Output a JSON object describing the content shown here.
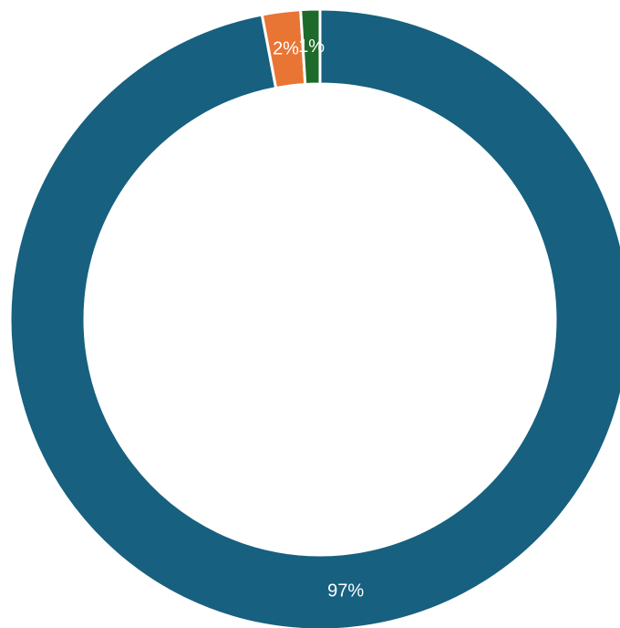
{
  "chart_data": {
    "type": "pie",
    "style": "donut",
    "grid": false,
    "legend": "none",
    "slices": [
      {
        "value": 97,
        "label": "97%",
        "color": "#17607f"
      },
      {
        "value": 2,
        "label": "2%",
        "color": "#e97535"
      },
      {
        "value": 1,
        "label": "1%",
        "color": "#1e6a2a"
      }
    ]
  }
}
